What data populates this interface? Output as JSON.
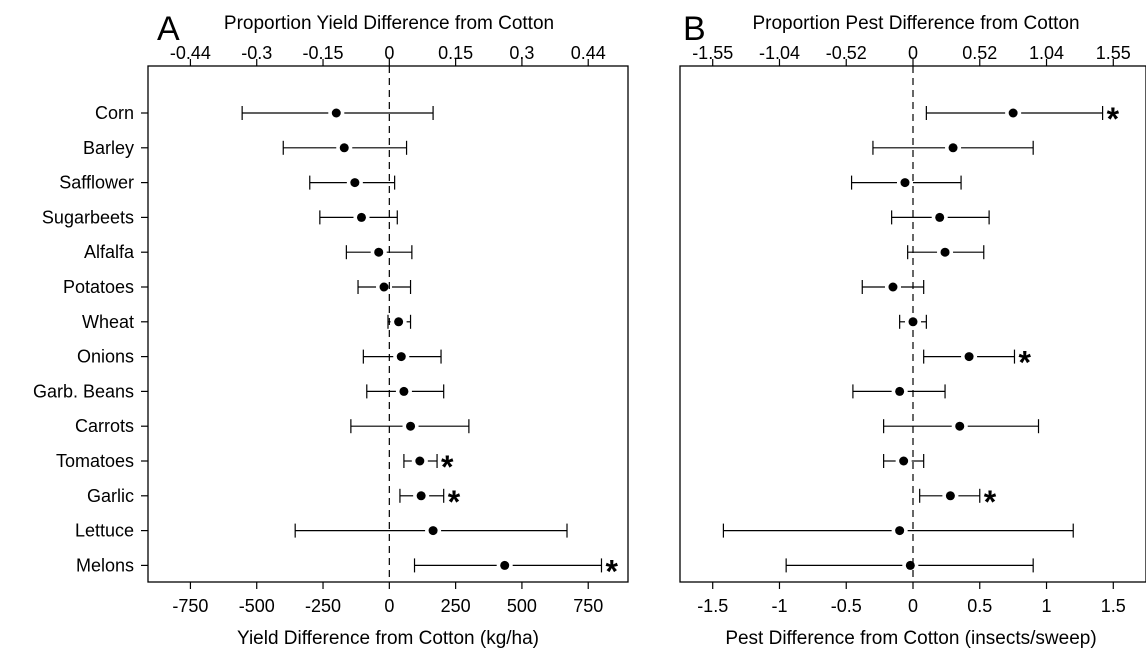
{
  "chart_data": [
    {
      "type": "forest",
      "panel_letter": "A",
      "top_axis_label": "Proportion Yield Difference from Cotton",
      "top_ticks": [
        "-0.44",
        "-0.3",
        "-0.15",
        "0",
        "0.15",
        "0.3",
        "0.44"
      ],
      "top_tick_positions": [
        -750,
        -500,
        -250,
        0,
        250,
        500,
        750
      ],
      "xlabel": "Yield Difference from Cotton (kg/ha)",
      "xticks": [
        "-750",
        "-500",
        "-250",
        "0",
        "250",
        "500",
        "750"
      ],
      "xlim": [
        -910,
        900
      ],
      "reference_line": 0,
      "categories": [
        "Corn",
        "Barley",
        "Safflower",
        "Sugarbeets",
        "Alfalfa",
        "Potatoes",
        "Wheat",
        "Onions",
        "Garb. Beans",
        "Carrots",
        "Tomatoes",
        "Garlic",
        "Lettuce",
        "Melons"
      ],
      "estimates": [
        -200,
        -170,
        -130,
        -105,
        -40,
        -20,
        35,
        45,
        55,
        80,
        115,
        120,
        165,
        435
      ],
      "lower": [
        -555,
        -400,
        -300,
        -262,
        -162,
        -118,
        -5,
        -98,
        -85,
        -145,
        55,
        40,
        -355,
        95
      ],
      "upper": [
        165,
        65,
        20,
        30,
        85,
        80,
        80,
        195,
        205,
        300,
        180,
        205,
        670,
        800
      ],
      "significant": [
        "",
        "",
        "",
        "",
        "",
        "",
        "",
        "",
        "",
        "",
        "*",
        "*",
        "",
        "*"
      ]
    },
    {
      "type": "forest",
      "panel_letter": "B",
      "top_axis_label": "Proportion Pest Difference from Cotton",
      "top_ticks": [
        "-1.55",
        "-1.04",
        "-0.52",
        "0",
        "0.52",
        "1.04",
        "1.55"
      ],
      "top_tick_positions": [
        -1.5,
        -1.0,
        -0.5,
        0,
        0.5,
        1.0,
        1.5
      ],
      "xlabel": "Pest Difference from Cotton (insects/sweep)",
      "xticks": [
        "-1.5",
        "-1",
        "-0.5",
        "0",
        "0.5",
        "1",
        "1.5"
      ],
      "xlim": [
        -1.745,
        1.745
      ],
      "reference_line": 0,
      "categories": [
        "Corn",
        "Barley",
        "Safflower",
        "Sugarbeets",
        "Alfalfa",
        "Potatoes",
        "Wheat",
        "Onions",
        "Garb. Beans",
        "Carrots",
        "Tomatoes",
        "Garlic",
        "Lettuce",
        "Melons"
      ],
      "estimates": [
        0.75,
        0.3,
        -0.06,
        0.2,
        0.24,
        -0.15,
        0.0,
        0.42,
        -0.1,
        0.35,
        -0.07,
        0.28,
        -0.1,
        -0.02
      ],
      "lower": [
        0.1,
        -0.3,
        -0.46,
        -0.16,
        -0.04,
        -0.38,
        -0.1,
        0.08,
        -0.45,
        -0.22,
        -0.22,
        0.05,
        -1.42,
        -0.95
      ],
      "upper": [
        1.42,
        0.9,
        0.36,
        0.57,
        0.53,
        0.08,
        0.1,
        0.76,
        0.24,
        0.94,
        0.08,
        0.5,
        1.2,
        0.9
      ],
      "significant": [
        "*",
        "",
        "",
        "",
        "",
        "",
        "",
        "*",
        "",
        "",
        "",
        "*",
        "",
        ""
      ]
    }
  ]
}
